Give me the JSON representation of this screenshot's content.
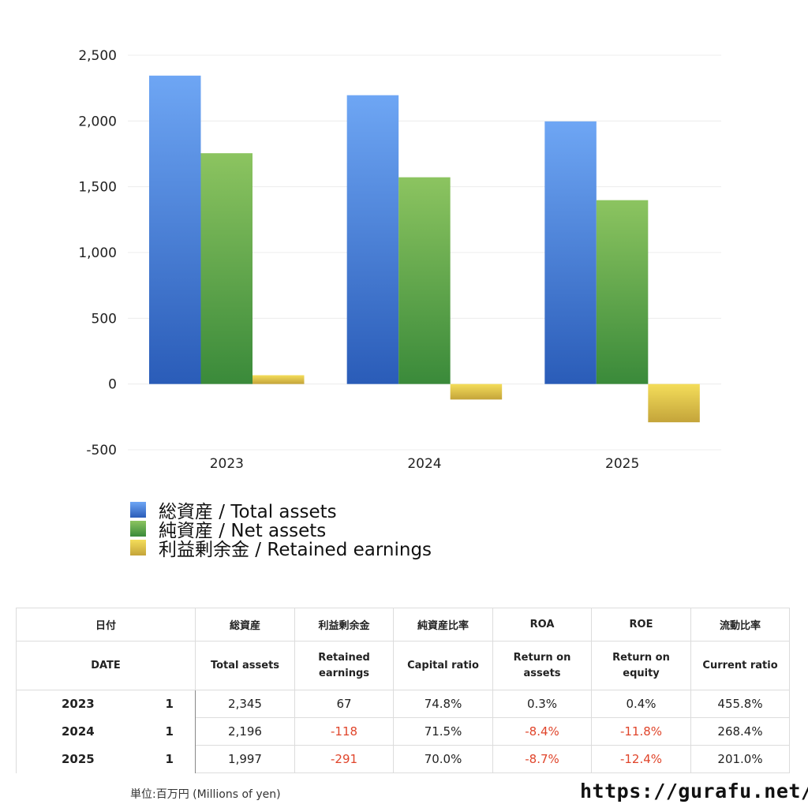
{
  "chart_data": {
    "type": "bar",
    "categories": [
      "2023",
      "2024",
      "2025"
    ],
    "series": [
      {
        "name": "総資産 / Total assets",
        "values": [
          2345,
          2196,
          1997
        ],
        "color_top": "#6ea6f4",
        "color_bottom": "#2a5cb8"
      },
      {
        "name": "純資産 / Net assets",
        "values": [
          1755,
          1572,
          1398
        ],
        "color_top": "#8cc460",
        "color_bottom": "#3a8a3a"
      },
      {
        "name": "利益剰余金 / Retained earnings",
        "values": [
          67,
          -118,
          -291
        ],
        "color_top": "#f4dd5a",
        "color_bottom": "#c4a43a"
      }
    ],
    "ylim": [
      -500,
      2500
    ],
    "yticks": [
      -500,
      0,
      500,
      1000,
      1500,
      2000,
      2500
    ],
    "ytick_labels": [
      "-500",
      "0",
      "500",
      "1,000",
      "1,500",
      "2,000",
      "2,500"
    ],
    "grid": true,
    "legend_position": "bottom-left"
  },
  "table": {
    "header_jp": [
      "日付",
      "総資産",
      "利益剰余金",
      "純資産比率",
      "ROA",
      "ROE",
      "流動比率"
    ],
    "header_en": [
      "DATE",
      "Total assets",
      "Retained earnings",
      "Capital ratio",
      "Return on assets",
      "Return on equity",
      "Current ratio"
    ],
    "rows": [
      {
        "year": "2023",
        "idx": "1",
        "total_assets": "2,345",
        "retained": "67",
        "capital_ratio": "74.8%",
        "roa": "0.3%",
        "roe": "0.4%",
        "current_ratio": "455.8%"
      },
      {
        "year": "2024",
        "idx": "1",
        "total_assets": "2,196",
        "retained": "-118",
        "capital_ratio": "71.5%",
        "roa": "-8.4%",
        "roe": "-11.8%",
        "current_ratio": "268.4%"
      },
      {
        "year": "2025",
        "idx": "1",
        "total_assets": "1,997",
        "retained": "-291",
        "capital_ratio": "70.0%",
        "roa": "-8.7%",
        "roe": "-12.4%",
        "current_ratio": "201.0%"
      }
    ]
  },
  "footer": {
    "unit": "単位:百万円 (Millions of yen)",
    "url": "https://gurafu.net/"
  }
}
